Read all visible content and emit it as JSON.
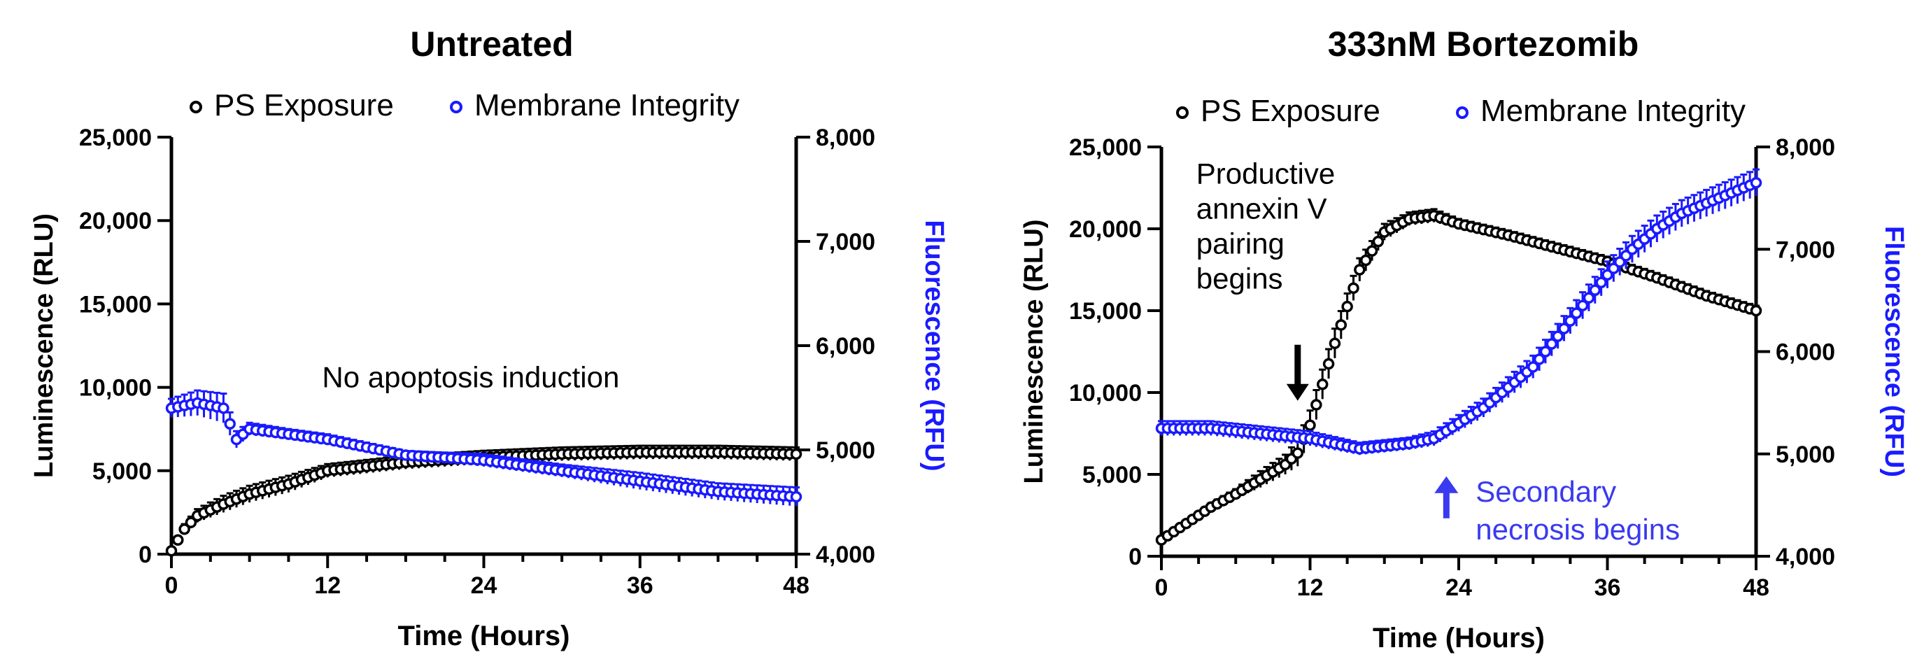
{
  "colors": {
    "ps": "#000000",
    "mi": "#1a1aff",
    "annotation_blue": "#3a3af0",
    "axis": "#000000"
  },
  "chart_data": [
    {
      "type": "scatter",
      "title": "Untreated",
      "xlabel": "Time (Hours)",
      "ylabel": "Luminescence (RLU)",
      "y2label": "Fluorescence (RFU)",
      "xlim": [
        0,
        48
      ],
      "ylim": [
        0,
        25000
      ],
      "y2lim": [
        4000,
        8000
      ],
      "x_ticks": [
        0,
        12,
        24,
        36,
        48
      ],
      "y_ticks": [
        0,
        5000,
        10000,
        15000,
        20000,
        25000
      ],
      "y_tick_labels": [
        "0",
        "5,000",
        "10,000",
        "15,000",
        "20,000",
        "25,000"
      ],
      "y2_ticks": [
        4000,
        5000,
        6000,
        7000,
        8000
      ],
      "y2_tick_labels": [
        "4,000",
        "5,000",
        "6,000",
        "7,000",
        "8,000"
      ],
      "grid": false,
      "legend": {
        "placement": "top",
        "entries": [
          "PS Exposure",
          "Membrane Integrity"
        ]
      },
      "annotations": [
        {
          "text": "No apoptosis induction",
          "x": 23,
          "y": 10000
        }
      ],
      "series": [
        {
          "name": "PS Exposure",
          "axis": "left",
          "x": [
            0,
            1,
            2,
            4,
            6,
            9,
            12,
            18,
            24,
            30,
            36,
            42,
            48
          ],
          "y": [
            200,
            1500,
            2300,
            3000,
            3600,
            4200,
            5000,
            5500,
            5800,
            6000,
            6100,
            6100,
            6000
          ],
          "err": [
            100,
            300,
            400,
            500,
            500,
            500,
            400,
            400,
            400,
            400,
            400,
            400,
            400
          ]
        },
        {
          "name": "Membrane Integrity",
          "axis": "right",
          "x": [
            0,
            2,
            4,
            5,
            6,
            9,
            12,
            18,
            24,
            30,
            36,
            42,
            48
          ],
          "y": [
            5400,
            5450,
            5400,
            5100,
            5200,
            5150,
            5100,
            4950,
            4900,
            4800,
            4700,
            4600,
            4550
          ],
          "err": [
            90,
            120,
            140,
            80,
            60,
            50,
            50,
            40,
            60,
            60,
            80,
            80,
            90
          ]
        }
      ]
    },
    {
      "type": "scatter",
      "title": "333nM Bortezomib",
      "xlabel": "Time (Hours)",
      "ylabel": "Luminescence (RLU)",
      "y2label": "Fluorescence (RFU)",
      "xlim": [
        0,
        48
      ],
      "ylim": [
        0,
        25000
      ],
      "y2lim": [
        4000,
        8000
      ],
      "x_ticks": [
        0,
        12,
        24,
        36,
        48
      ],
      "y_ticks": [
        0,
        5000,
        10000,
        15000,
        20000,
        25000
      ],
      "y_tick_labels": [
        "0",
        "5,000",
        "10,000",
        "15,000",
        "20,000",
        "25,000"
      ],
      "y2_ticks": [
        4000,
        5000,
        6000,
        7000,
        8000
      ],
      "y2_tick_labels": [
        "4,000",
        "5,000",
        "6,000",
        "7,000",
        "8,000"
      ],
      "grid": false,
      "legend": {
        "placement": "top",
        "entries": [
          "PS Exposure",
          "Membrane Integrity"
        ]
      },
      "annotations": [
        {
          "text": "Productive annexin V pairing begins",
          "lines": [
            "Productive",
            "annexin V",
            "pairing",
            "begins"
          ],
          "x": 11,
          "y": 9500,
          "arrow": "down",
          "color_key": "ps"
        },
        {
          "text": "Secondary necrosis begins",
          "lines": [
            "Secondary",
            "necrosis begins"
          ],
          "x": 23,
          "y": 3000,
          "arrow": "up",
          "color_key": "annotation_blue"
        }
      ],
      "series": [
        {
          "name": "PS Exposure",
          "axis": "left",
          "x": [
            0,
            2,
            4,
            6,
            8,
            10,
            11,
            12,
            14,
            16,
            18,
            20,
            22,
            24,
            28,
            32,
            36,
            40,
            44,
            48
          ],
          "y": [
            1000,
            2000,
            3000,
            3800,
            4700,
            5600,
            6300,
            8000,
            13000,
            17500,
            19800,
            20600,
            20800,
            20300,
            19600,
            18800,
            18000,
            17000,
            15900,
            15000
          ],
          "err": [
            150,
            200,
            250,
            300,
            500,
            600,
            800,
            900,
            900,
            700,
            500,
            400,
            400,
            300,
            300,
            300,
            300,
            300,
            300,
            300
          ]
        },
        {
          "name": "Membrane Integrity",
          "axis": "right",
          "x": [
            0,
            4,
            8,
            12,
            16,
            20,
            22,
            24,
            26,
            28,
            30,
            32,
            34,
            36,
            38,
            40,
            42,
            44,
            46,
            48
          ],
          "y": [
            5250,
            5250,
            5200,
            5150,
            5050,
            5100,
            5150,
            5300,
            5450,
            5650,
            5850,
            6150,
            6450,
            6750,
            7000,
            7200,
            7350,
            7450,
            7550,
            7650
          ],
          "err": [
            70,
            70,
            70,
            70,
            60,
            60,
            70,
            80,
            90,
            100,
            110,
            120,
            130,
            130,
            130,
            130,
            130,
            130,
            130,
            130
          ]
        }
      ]
    }
  ]
}
